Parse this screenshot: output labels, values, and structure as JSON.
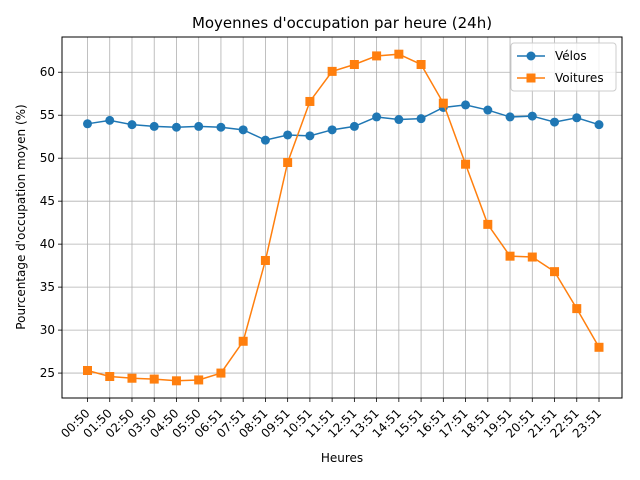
{
  "chart_data": {
    "type": "line",
    "title": "Moyennes d'occupation par heure (24h)",
    "xlabel": "Heures",
    "ylabel": "Pourcentage d'occupation moyen (%)",
    "categories": [
      "00:50",
      "01:50",
      "02:50",
      "03:50",
      "04:50",
      "05:50",
      "06:51",
      "07:51",
      "08:51",
      "09:51",
      "10:51",
      "11:51",
      "12:51",
      "13:51",
      "14:51",
      "15:51",
      "16:51",
      "17:51",
      "18:51",
      "19:51",
      "20:51",
      "21:51",
      "22:51",
      "23:51"
    ],
    "ylim": [
      22.1,
      64.1
    ],
    "yticks": [
      25,
      30,
      35,
      40,
      45,
      50,
      55,
      60
    ],
    "grid": true,
    "legend_position": "top-right",
    "series": [
      {
        "name": "Vélos",
        "color": "#1f77b4",
        "marker": "circle",
        "values": [
          54.0,
          54.4,
          53.9,
          53.7,
          53.6,
          53.7,
          53.6,
          53.3,
          52.1,
          52.7,
          52.6,
          53.3,
          53.7,
          54.8,
          54.5,
          54.6,
          55.9,
          56.2,
          55.6,
          54.8,
          54.9,
          54.2,
          54.7,
          53.9
        ]
      },
      {
        "name": "Voitures",
        "color": "#ff7f0e",
        "marker": "square",
        "values": [
          25.3,
          24.6,
          24.4,
          24.3,
          24.1,
          24.2,
          25.0,
          28.7,
          38.1,
          49.5,
          56.6,
          60.1,
          60.9,
          61.9,
          62.1,
          60.9,
          56.4,
          49.3,
          42.3,
          38.6,
          38.5,
          36.8,
          32.5,
          28.0
        ]
      }
    ]
  }
}
